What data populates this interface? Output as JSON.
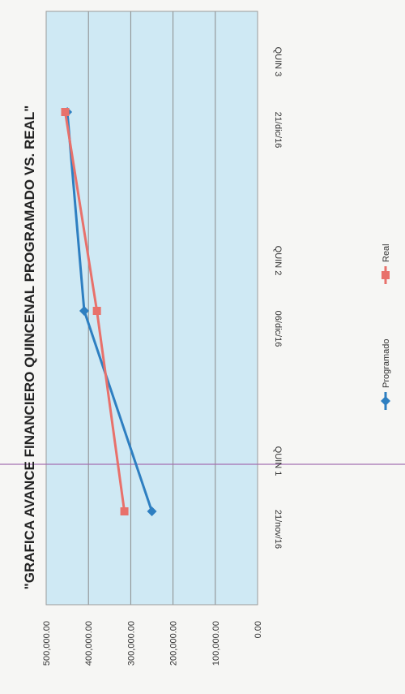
{
  "chart_data": {
    "type": "line",
    "title": "\"GRAFICA AVANCE FINANCIERO QUINCENAL PROGRAMADO VS. REAL\"",
    "categories": [
      {
        "line1": "QUIN 1",
        "line2": "21/nov/16"
      },
      {
        "line1": "QUIN 2",
        "line2": "06/dic/16"
      },
      {
        "line1": "QUIN 3",
        "line2": "21/dic/16"
      }
    ],
    "yticks": [
      "0.00",
      "100,000.00",
      "200,000.00",
      "300,000.00",
      "400,000.00",
      "500,000.00"
    ],
    "ylim": [
      0,
      500000
    ],
    "grid": true,
    "legend_position": "bottom-right",
    "series": [
      {
        "name": "Programado",
        "values": [
          250000,
          410000,
          450000
        ],
        "color": "#2e7fc1",
        "marker": "diamond"
      },
      {
        "name": "Real",
        "values": [
          315000,
          380000,
          455000
        ],
        "color": "#e8716b",
        "marker": "square"
      }
    ],
    "colors": {
      "plot_background": "#cfe9f4",
      "gridline": "#8a8a8a",
      "crosshair": "#a36fb0"
    }
  }
}
